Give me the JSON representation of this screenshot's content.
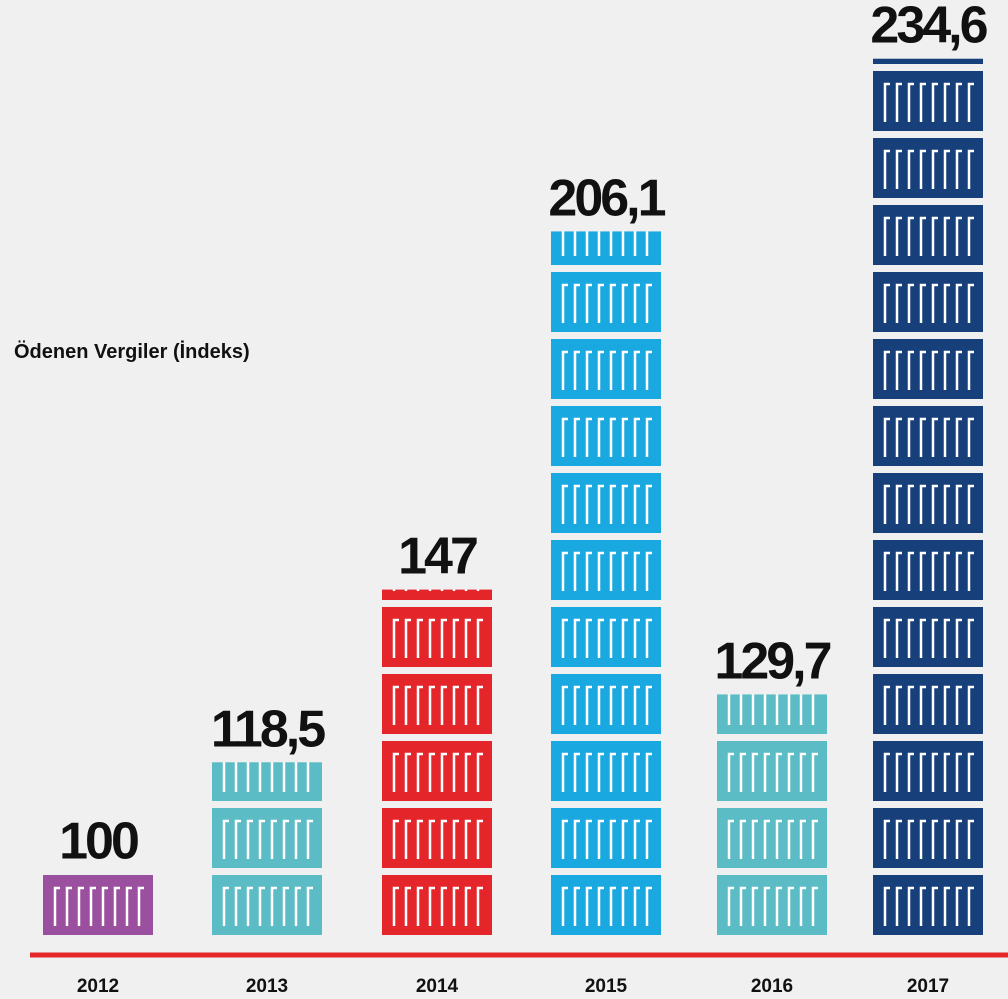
{
  "chart_data": {
    "type": "pictogram",
    "title": "Ödenen Vergiler (İndeks)",
    "categories": [
      "2012",
      "2013",
      "2014",
      "2015",
      "2016",
      "2017"
    ],
    "values": [
      100,
      118.5,
      147,
      206.1,
      129.7,
      234.6
    ],
    "value_labels": [
      "100",
      "118,5",
      "147",
      "206,1",
      "129,7",
      "234,6"
    ],
    "colors": [
      "#9b4f9f",
      "#5bbcc6",
      "#e4262b",
      "#1aa8e0",
      "#5bbcc6",
      "#173f7a"
    ],
    "baseline_color": "#e4262b"
  }
}
